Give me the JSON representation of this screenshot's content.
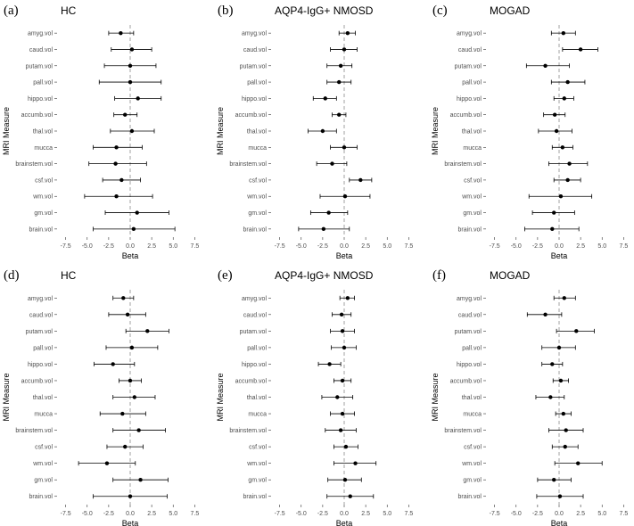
{
  "chart_data": [
    {
      "type": "forest",
      "panel": "(a)",
      "title": "HC",
      "xlabel": "Beta",
      "ylabel": "MRI Measure",
      "xlim": [
        -8.5,
        8.5
      ],
      "xticks": [
        "-7.5",
        "-5.0",
        "-2.5",
        "0.0",
        "2.5",
        "5.0",
        "7.5"
      ],
      "categories": [
        "amyg.vol",
        "caud.vol",
        "putam.vol",
        "pall.vol",
        "hippo.vol",
        "accumb.vol",
        "thal.vol",
        "mucca",
        "brainstem.vol",
        "csf.vol",
        "wm.vol",
        "gm.vol",
        "brain.vol"
      ],
      "estimate": [
        -1.1,
        0.2,
        0.0,
        0.0,
        0.9,
        -0.6,
        0.2,
        -1.6,
        -1.7,
        -1.0,
        -1.6,
        0.8,
        0.4
      ],
      "lower": [
        -2.5,
        -2.2,
        -3.0,
        -3.6,
        -1.8,
        -1.9,
        -2.3,
        -4.3,
        -4.8,
        -3.2,
        -5.3,
        -2.9,
        -4.3
      ],
      "upper": [
        0.4,
        2.5,
        3.0,
        3.6,
        3.6,
        0.8,
        2.8,
        1.4,
        1.9,
        1.2,
        2.6,
        4.5,
        5.2
      ]
    },
    {
      "type": "forest",
      "panel": "(b)",
      "title": "AQP4-IgG+ NMOSD",
      "xlabel": "Beta",
      "ylabel": "MRI Measure",
      "xlim": [
        -8.5,
        8.5
      ],
      "xticks": [
        "-7.5",
        "-5.0",
        "-2.5",
        "0.0",
        "2.5",
        "5.0",
        "7.5"
      ],
      "categories": [
        "amyg.vol",
        "caud.vol",
        "putam.vol",
        "pall.vol",
        "hippo.vol",
        "accumb.vol",
        "thal.vol",
        "mucca",
        "brainstem.vol",
        "csf.vol",
        "wm.vol",
        "gm.vol",
        "brain.vol"
      ],
      "estimate": [
        0.4,
        0.0,
        -0.4,
        -0.6,
        -2.2,
        -0.6,
        -2.5,
        0.0,
        -1.4,
        1.9,
        0.1,
        -1.8,
        -2.4
      ],
      "lower": [
        -0.6,
        -1.6,
        -2.0,
        -2.0,
        -3.6,
        -1.4,
        -4.2,
        -1.6,
        -3.2,
        0.6,
        -2.8,
        -3.9,
        -5.3
      ],
      "upper": [
        1.3,
        1.5,
        0.9,
        0.8,
        -0.9,
        0.2,
        -0.9,
        1.5,
        0.3,
        3.2,
        3.0,
        0.4,
        0.6
      ]
    },
    {
      "type": "forest",
      "panel": "(c)",
      "title": "MOGAD",
      "xlabel": "Beta",
      "ylabel": "MRI Measure",
      "xlim": [
        -8.5,
        8.5
      ],
      "xticks": [
        "-7.5",
        "-5.0",
        "-2.5",
        "0.0",
        "2.5",
        "5.0",
        "7.5"
      ],
      "categories": [
        "amyg.vol",
        "caud.vol",
        "putam.vol",
        "pall.vol",
        "hippo.vol",
        "accumb.vol",
        "thal.vol",
        "mucca",
        "brainstem.vol",
        "csf.vol",
        "wm.vol",
        "gm.vol",
        "brain.vol"
      ],
      "estimate": [
        0.5,
        2.5,
        -1.6,
        1.0,
        0.6,
        -0.5,
        -0.3,
        0.4,
        1.2,
        1.0,
        0.2,
        -0.6,
        -0.8
      ],
      "lower": [
        -0.9,
        0.4,
        -3.8,
        -0.9,
        -0.6,
        -1.8,
        -2.4,
        -0.8,
        -1.2,
        -0.6,
        -3.5,
        -3.1,
        -4.0
      ],
      "upper": [
        1.9,
        4.5,
        1.2,
        3.0,
        1.7,
        0.7,
        1.5,
        1.6,
        3.3,
        2.5,
        3.8,
        1.8,
        2.3
      ]
    },
    {
      "type": "forest",
      "panel": "(d)",
      "title": "HC",
      "xlabel": "Beta",
      "ylabel": "MRI Measure",
      "xlim": [
        -8.5,
        8.5
      ],
      "xticks": [
        "-7.5",
        "-5.0",
        "-2.5",
        "0.0",
        "2.5",
        "5.0",
        "7.5"
      ],
      "categories": [
        "amyg.vol",
        "caud.vol",
        "putam.vol",
        "pall.vol",
        "hippo.vol",
        "accumb.vol",
        "thal.vol",
        "mucca",
        "brainstem.vol",
        "csf.vol",
        "wm.vol",
        "gm.vol",
        "brain.vol"
      ],
      "estimate": [
        -0.8,
        -0.3,
        2.0,
        0.2,
        -2.0,
        0.0,
        0.5,
        -0.9,
        1.0,
        -0.6,
        -2.7,
        1.2,
        0.0
      ],
      "lower": [
        -2.0,
        -2.5,
        -0.5,
        -2.8,
        -4.2,
        -1.3,
        -2.0,
        -3.5,
        -2.0,
        -2.7,
        -6.0,
        -2.0,
        -4.3
      ],
      "upper": [
        0.4,
        1.8,
        4.5,
        3.2,
        0.5,
        1.3,
        2.9,
        1.8,
        4.1,
        1.5,
        0.6,
        4.4,
        4.3
      ]
    },
    {
      "type": "forest",
      "panel": "(e)",
      "title": "AQP4-IgG+ NMOSD",
      "xlabel": "Beta",
      "ylabel": "MRI Measure",
      "xlim": [
        -8.5,
        8.5
      ],
      "xticks": [
        "-7.5",
        "-5.0",
        "-2.5",
        "0.0",
        "2.5",
        "5.0",
        "7.5"
      ],
      "categories": [
        "amyg.vol",
        "caud.vol",
        "putam.vol",
        "pall.vol",
        "hippo.vol",
        "accumb.vol",
        "thal.vol",
        "mucca",
        "brainstem.vol",
        "csf.vol",
        "wm.vol",
        "gm.vol",
        "brain.vol"
      ],
      "estimate": [
        0.4,
        -0.3,
        -0.2,
        0.0,
        -1.7,
        -0.2,
        -0.8,
        -0.2,
        -0.4,
        0.2,
        1.3,
        0.1,
        0.7
      ],
      "lower": [
        -0.5,
        -1.4,
        -1.6,
        -1.5,
        -3.0,
        -1.2,
        -2.6,
        -1.6,
        -2.2,
        -1.2,
        -1.2,
        -1.9,
        -2.0
      ],
      "upper": [
        1.2,
        0.8,
        1.2,
        1.4,
        -0.4,
        0.8,
        1.0,
        1.2,
        1.4,
        1.6,
        3.7,
        2.0,
        3.4
      ]
    },
    {
      "type": "forest",
      "panel": "(f)",
      "title": "MOGAD",
      "xlabel": "Beta",
      "ylabel": "MRI Measure",
      "xlim": [
        -8.5,
        8.5
      ],
      "xticks": [
        "-7.5",
        "-5.0",
        "-2.5",
        "0.0",
        "2.5",
        "5.0",
        "7.5"
      ],
      "categories": [
        "amyg.vol",
        "caud.vol",
        "putam.vol",
        "pall.vol",
        "hippo.vol",
        "accumb.vol",
        "thal.vol",
        "mucca",
        "brainstem.vol",
        "csf.vol",
        "wm.vol",
        "gm.vol",
        "brain.vol"
      ],
      "estimate": [
        0.6,
        -1.6,
        2.0,
        0.0,
        -0.8,
        0.2,
        -1.0,
        0.5,
        0.8,
        0.7,
        2.2,
        -0.6,
        0.1
      ],
      "lower": [
        -0.6,
        -3.7,
        -0.3,
        -2.0,
        -2.0,
        -0.7,
        -2.7,
        -0.4,
        -1.2,
        -0.8,
        -0.5,
        -2.5,
        -2.6
      ],
      "upper": [
        1.9,
        0.3,
        4.1,
        1.9,
        0.4,
        1.1,
        0.6,
        1.4,
        2.8,
        2.2,
        5.0,
        1.4,
        2.8
      ]
    }
  ]
}
